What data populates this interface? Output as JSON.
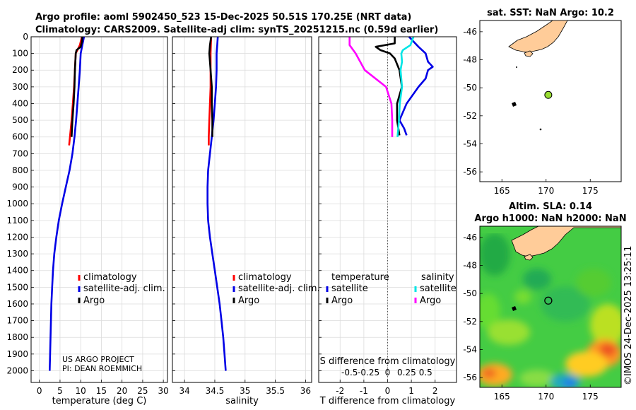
{
  "figure": {
    "title_line1": "Argo profile: aoml 5902450_523 15-Dec-2025 50.51S 170.25E (NRT data)",
    "title_line2": "Climatology: CARS2009. Satellite-adj clim: synTS_20251215.nc (0.59d earlier)",
    "credit": "US ARGO PROJECT",
    "pi": "PI: DEAN ROEMMICH",
    "watermark": "©IMOS 24-Dec-2025 13:25:11"
  },
  "chart_data": [
    {
      "id": "temperature",
      "type": "line",
      "xlabel": "temperature (deg C)",
      "xlim": [
        -2,
        31
      ],
      "ylim": [
        0,
        2070
      ],
      "xticks": [
        0,
        5,
        10,
        15,
        20,
        25,
        30
      ],
      "yticks": [
        0,
        100,
        200,
        300,
        400,
        500,
        600,
        700,
        800,
        900,
        1000,
        1100,
        1200,
        1300,
        1400,
        1500,
        1600,
        1700,
        1800,
        1900,
        2000
      ],
      "legend": [
        "climatology",
        "satellite-adj. clim.",
        "Argo"
      ],
      "series": [
        {
          "name": "climatology",
          "color": "#ff0000",
          "depth": [
            0,
            50,
            100,
            200,
            300,
            400,
            500,
            600,
            650
          ],
          "values": [
            10.3,
            9.8,
            8.8,
            8.6,
            8.4,
            8.1,
            7.8,
            7.4,
            7.2
          ]
        },
        {
          "name": "satellite-adj. clim.",
          "color": "#0000e6",
          "depth": [
            0,
            50,
            100,
            200,
            300,
            400,
            500,
            600,
            700,
            800,
            900,
            1000,
            1100,
            1200,
            1300,
            1400,
            1500,
            1600,
            1700,
            1800,
            1900,
            2000
          ],
          "values": [
            10.8,
            10.4,
            10.0,
            9.8,
            9.5,
            9.2,
            8.9,
            8.5,
            8.0,
            7.3,
            6.4,
            5.5,
            4.7,
            4.1,
            3.6,
            3.3,
            3.1,
            2.9,
            2.8,
            2.7,
            2.6,
            2.5
          ]
        },
        {
          "name": "Argo",
          "color": "#000000",
          "depth": [
            0,
            30,
            60,
            80,
            100,
            150,
            200,
            300,
            400,
            500,
            600
          ],
          "values": [
            10.4,
            10.3,
            10.0,
            9.0,
            8.8,
            8.7,
            8.6,
            8.5,
            8.3,
            8.0,
            7.8
          ]
        }
      ]
    },
    {
      "id": "salinity",
      "type": "line",
      "xlabel": "salinity",
      "xlim": [
        33.8,
        36.1
      ],
      "ylim": [
        0,
        2070
      ],
      "xticks": [
        34,
        34.5,
        35,
        35.5,
        36
      ],
      "legend": [
        "climatology",
        "satellite-adj. clim.",
        "Argo"
      ],
      "series": [
        {
          "name": "climatology",
          "color": "#ff0000",
          "depth": [
            0,
            100,
            200,
            300,
            400,
            500,
            600,
            650
          ],
          "values": [
            34.44,
            34.43,
            34.43,
            34.43,
            34.42,
            34.41,
            34.4,
            34.4
          ]
        },
        {
          "name": "satellite-adj. clim.",
          "color": "#0000e6",
          "depth": [
            0,
            50,
            100,
            200,
            300,
            400,
            500,
            600,
            700,
            800,
            900,
            1000,
            1100,
            1200,
            1300,
            1400,
            1500,
            1600,
            1700,
            1800,
            1900,
            2000
          ],
          "values": [
            34.55,
            34.54,
            34.53,
            34.53,
            34.52,
            34.5,
            34.48,
            34.45,
            34.42,
            34.39,
            34.38,
            34.38,
            34.39,
            34.42,
            34.46,
            34.5,
            34.54,
            34.58,
            34.61,
            34.64,
            34.66,
            34.68
          ]
        },
        {
          "name": "Argo",
          "color": "#000000",
          "depth": [
            0,
            50,
            100,
            150,
            200,
            300,
            400,
            500,
            600
          ],
          "values": [
            34.44,
            34.42,
            34.41,
            34.42,
            34.43,
            34.45,
            34.45,
            34.46,
            34.46
          ]
        }
      ]
    },
    {
      "id": "difference",
      "type": "line",
      "xlabel": "T difference from climatology",
      "x2label": "S difference from climatology",
      "xlim": [
        -2.9,
        2.9
      ],
      "ylim": [
        0,
        2070
      ],
      "xticks": [
        -2,
        -1,
        0,
        1,
        2
      ],
      "x2ticks": [
        "-0.5",
        "-0.25",
        "0",
        "0.25",
        "0.5"
      ],
      "legend_temperature_title": "temperature",
      "legend_salinity_title": "salinity",
      "legend": [
        "satellite",
        "Argo",
        "satellite",
        "Argo"
      ],
      "series": [
        {
          "name": "T satellite",
          "color": "#0000e6",
          "depth": [
            0,
            30,
            60,
            100,
            150,
            180,
            200,
            250,
            300,
            400,
            500,
            550,
            590
          ],
          "values": [
            0.9,
            1.1,
            1.3,
            1.6,
            1.7,
            1.9,
            1.7,
            1.6,
            1.3,
            0.8,
            0.5,
            0.7,
            0.8
          ]
        },
        {
          "name": "T Argo",
          "color": "#000000",
          "depth": [
            0,
            40,
            60,
            80,
            100,
            130,
            200,
            300,
            400,
            500,
            590
          ],
          "values": [
            0.3,
            0.3,
            -0.5,
            -0.3,
            0.1,
            0.3,
            0.5,
            0.6,
            0.4,
            0.4,
            0.5
          ]
        },
        {
          "name": "S satellite",
          "color": "#00e5e5",
          "depth": [
            0,
            50,
            80,
            100,
            150,
            200,
            300,
            400,
            500,
            600
          ],
          "values": [
            0.34,
            0.3,
            0.2,
            0.18,
            0.19,
            0.17,
            0.19,
            0.16,
            0.15,
            0.13
          ]
        },
        {
          "name": "S Argo",
          "color": "#ff00ff",
          "depth": [
            0,
            50,
            100,
            200,
            300,
            400,
            500,
            600
          ],
          "values": [
            -0.5,
            -0.5,
            -0.42,
            -0.3,
            -0.02,
            0.05,
            0.06,
            0.06
          ]
        }
      ]
    },
    {
      "id": "sst_map",
      "type": "heatmap",
      "title": "sat. SST: NaN Argo: 10.2",
      "xlim": [
        162.5,
        178.5
      ],
      "ylim": [
        -56.7,
        -45.2
      ],
      "xticks": [
        165,
        170,
        175
      ],
      "yticks": [
        -46,
        -48,
        -50,
        -52,
        -54,
        -56
      ],
      "argo_position": {
        "lon": 170.25,
        "lat": -50.51
      }
    },
    {
      "id": "sla_map",
      "type": "heatmap",
      "title": "Altim. SLA: 0.14",
      "subtitle": "Argo h1000: NaN h2000: NaN",
      "xlim": [
        162.5,
        178.5
      ],
      "ylim": [
        -56.7,
        -45.2
      ],
      "xticks": [
        165,
        170,
        175
      ],
      "yticks": [
        -46,
        -48,
        -50,
        -52,
        -54,
        -56
      ],
      "argo_position": {
        "lon": 170.25,
        "lat": -50.51
      }
    }
  ]
}
